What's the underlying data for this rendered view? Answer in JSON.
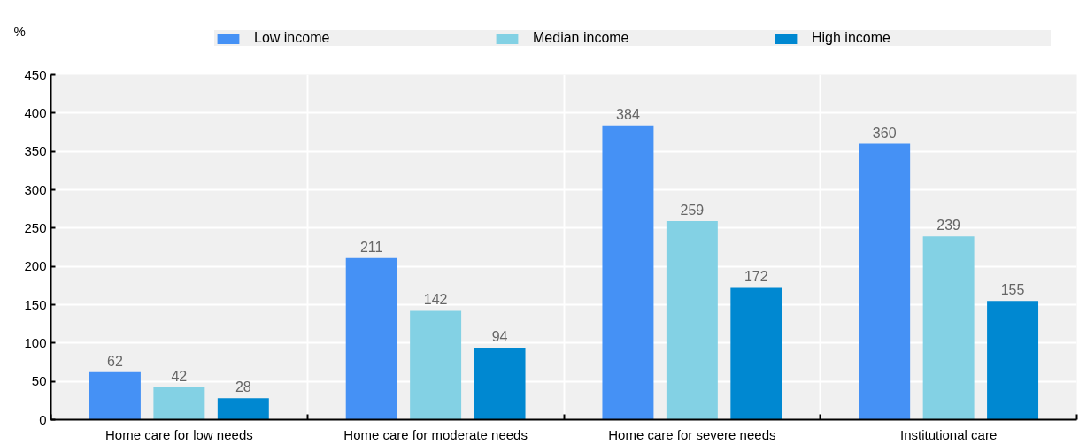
{
  "chart_data": {
    "type": "bar",
    "ylabel": "%",
    "categories": [
      "Home care for low needs",
      "Home care for moderate needs",
      "Home care for severe needs",
      "Institutional care"
    ],
    "series": [
      {
        "name": "Low income",
        "color": "#4591f5",
        "values": [
          62,
          211,
          384,
          360
        ]
      },
      {
        "name": "Median income",
        "color": "#83d1e4",
        "values": [
          42,
          142,
          259,
          239
        ]
      },
      {
        "name": "High income",
        "color": "#0088d1",
        "values": [
          28,
          94,
          172,
          155
        ]
      }
    ],
    "ylim": [
      0,
      450
    ],
    "yticks": [
      0,
      50,
      100,
      150,
      200,
      250,
      300,
      350,
      400,
      450
    ],
    "grid": true,
    "legend": "top",
    "data_labels": true
  }
}
